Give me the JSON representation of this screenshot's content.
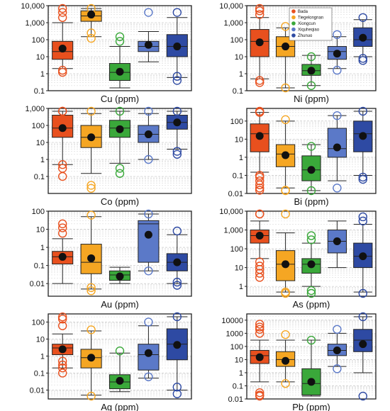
{
  "colors": {
    "Bada": "#e8501e",
    "Tiegelongnan": "#f5a623",
    "Xiongcun": "#3aa83a",
    "Xiquheqiao": "#5b79c8",
    "Zhunuo": "#2e4aa3"
  },
  "legend": [
    "Bada",
    "Tiegelongnan",
    "Xiongcun",
    "Xiquheqiao",
    "Zhunuo"
  ],
  "chart_data": [
    {
      "type": "box",
      "xlabel": "Cu  (ppm)",
      "yscale": "log",
      "ylim": [
        0.1,
        10000
      ],
      "yticks": [
        "0.1",
        "1",
        "10",
        "100",
        "1,000",
        "10,000"
      ],
      "series": [
        {
          "name": "Bada",
          "whisker_low": 2,
          "q1": 7,
          "median": 20,
          "q3": 80,
          "whisker_high": 1000,
          "mean": 30,
          "outliers": [
            1.2,
            1.6,
            2000,
            4000,
            13000
          ]
        },
        {
          "name": "Tiegelongnan",
          "whisker_low": 150,
          "q1": 1200,
          "median": 2500,
          "q3": 5000,
          "whisker_high": 60000,
          "mean": 3000,
          "outliers": [
            120,
            250,
            60000
          ]
        },
        {
          "name": "Xiongcun",
          "whisker_low": 0.12,
          "q1": 0.4,
          "median": 1.2,
          "q3": 4,
          "whisker_high": 40,
          "mean": 1.3,
          "outliers": [
            80,
            150
          ]
        },
        {
          "name": "Xiquheqiao",
          "whisker_low": 5,
          "q1": 20,
          "median": 40,
          "q3": 80,
          "whisker_high": 300,
          "mean": 50,
          "outliers": [
            4000
          ]
        },
        {
          "name": "Zhunuo",
          "whisker_low": 0.6,
          "q1": 10,
          "median": 40,
          "q3": 200,
          "whisker_high": 2000,
          "mean": 40,
          "outliers": [
            0.4,
            0.7,
            4000
          ]
        }
      ]
    },
    {
      "type": "box",
      "xlabel": "Ni  (ppm)",
      "yscale": "log",
      "ylim": [
        0.1,
        10000
      ],
      "yticks": [
        "0.1",
        "1",
        "10",
        "100",
        "1,000",
        "10,000"
      ],
      "series": [
        {
          "name": "Bada",
          "whisker_low": 0.5,
          "q1": 10,
          "median": 80,
          "q3": 400,
          "whisker_high": 2000,
          "mean": 70,
          "outliers": [
            0.3,
            0.4,
            3000,
            5000,
            8000
          ]
        },
        {
          "name": "Tiegelongnan",
          "whisker_low": 0.1,
          "q1": 10,
          "median": 40,
          "q3": 150,
          "whisker_high": 500,
          "mean": 40,
          "outliers": [
            0.12,
            600
          ]
        },
        {
          "name": "Xiongcun",
          "whisker_low": 0.2,
          "q1": 0.8,
          "median": 1.5,
          "q3": 3.5,
          "whisker_high": 12,
          "mean": 1.5,
          "outliers": [
            0.2,
            10
          ]
        },
        {
          "name": "Xiquheqiao",
          "whisker_low": 2,
          "q1": 7,
          "median": 20,
          "q3": 40,
          "whisker_high": 150,
          "mean": 15,
          "outliers": [
            1.6,
            200
          ]
        },
        {
          "name": "Zhunuo",
          "whisker_low": 10,
          "q1": 40,
          "median": 100,
          "q3": 500,
          "whisker_high": 1500,
          "mean": 130,
          "outliers": [
            6,
            8,
            2000
          ]
        }
      ]
    },
    {
      "type": "box",
      "xlabel": "Co  (ppm)",
      "yscale": "log",
      "ylim": [
        0.01,
        1000
      ],
      "yticks": [
        "0.1",
        "1",
        "10",
        "100",
        "1,000"
      ],
      "series": [
        {
          "name": "Bada",
          "whisker_low": 0.5,
          "q1": 20,
          "median": 70,
          "q3": 400,
          "whisker_high": 2000,
          "mean": 70,
          "outliers": [
            0.1,
            0.3,
            0.5,
            2000,
            3000
          ]
        },
        {
          "name": "Tiegelongnan",
          "whisker_low": 0.15,
          "q1": 5,
          "median": 20,
          "q3": 100,
          "whisker_high": 500,
          "mean": 20,
          "outliers": [
            0.02,
            0.03,
            2000
          ]
        },
        {
          "name": "Xiongcun",
          "whisker_low": 0.6,
          "q1": 20,
          "median": 70,
          "q3": 200,
          "whisker_high": 1000,
          "mean": 60,
          "outliers": [
            0.15,
            0.3,
            2000
          ]
        },
        {
          "name": "Xiquheqiao",
          "whisker_low": 1,
          "q1": 10,
          "median": 30,
          "q3": 100,
          "whisker_high": 500,
          "mean": 30,
          "outliers": [
            1,
            2000
          ]
        },
        {
          "name": "Zhunuo",
          "whisker_low": 4,
          "q1": 60,
          "median": 150,
          "q3": 400,
          "whisker_high": 2000,
          "mean": 150,
          "outliers": [
            2,
            3,
            2000
          ]
        }
      ]
    },
    {
      "type": "box",
      "xlabel": "Bi  (ppm)",
      "yscale": "log",
      "ylim": [
        0.01,
        500
      ],
      "yticks": [
        "0.01",
        "0.1",
        "1",
        "10",
        "100"
      ],
      "series": [
        {
          "name": "Bada",
          "whisker_low": 0.15,
          "q1": 2,
          "median": 20,
          "q3": 70,
          "whisker_high": 300,
          "mean": 15,
          "outliers": [
            0.015,
            0.02,
            0.03,
            0.05,
            0.08,
            0.1,
            300,
            500
          ]
        },
        {
          "name": "Tiegelongnan",
          "whisker_low": 0.02,
          "q1": 0.3,
          "median": 1.5,
          "q3": 5,
          "whisker_high": 100,
          "mean": 1.3,
          "outliers": [
            0.01,
            0.015,
            120
          ]
        },
        {
          "name": "Xiongcun",
          "whisker_low": 0.01,
          "q1": 0.05,
          "median": 0.2,
          "q3": 1.2,
          "whisker_high": 5,
          "mean": 0.2,
          "outliers": [
            0.01,
            4
          ]
        },
        {
          "name": "Xiquheqiao",
          "whisker_low": 0.05,
          "q1": 1,
          "median": 3,
          "q3": 40,
          "whisker_high": 200,
          "mean": 3.5,
          "outliers": [
            0.02,
            200
          ]
        },
        {
          "name": "Zhunuo",
          "whisker_low": 0.1,
          "q1": 2,
          "median": 20,
          "q3": 100,
          "whisker_high": 500,
          "mean": 15,
          "outliers": [
            0.06,
            0.08,
            500
          ]
        }
      ]
    },
    {
      "type": "box",
      "xlabel": "Au  (ppm)",
      "yscale": "log",
      "ylim": [
        0.002,
        100
      ],
      "yticks": [
        "0.01",
        "0.1",
        "1",
        "10",
        "100"
      ],
      "series": [
        {
          "name": "Bada",
          "whisker_low": 0.01,
          "q1": 0.12,
          "median": 0.3,
          "q3": 0.6,
          "whisker_high": 3,
          "mean": 0.3,
          "outliers": [
            6,
            12,
            20
          ]
        },
        {
          "name": "Tiegelongnan",
          "whisker_low": 0.005,
          "q1": 0.035,
          "median": 0.15,
          "q3": 1.5,
          "whisker_high": 50,
          "mean": 0.25,
          "outliers": [
            0.004,
            0.006,
            60
          ]
        },
        {
          "name": "Xiongcun",
          "whisker_low": 0.01,
          "q1": 0.015,
          "median": 0.03,
          "q3": 0.05,
          "whisker_high": 0.08,
          "mean": 0.025,
          "outliers": []
        },
        {
          "name": "Xiquheqiao",
          "whisker_low": 0.05,
          "q1": 0.15,
          "median": 20,
          "q3": 30,
          "whisker_high": 100,
          "mean": 5,
          "outliers": [
            0.05,
            100
          ]
        },
        {
          "name": "Zhunuo",
          "whisker_low": 0.01,
          "q1": 0.05,
          "median": 0.15,
          "q3": 0.45,
          "whisker_high": 5,
          "mean": 0.15,
          "outliers": [
            0.008,
            0.012,
            8
          ]
        }
      ]
    },
    {
      "type": "box",
      "xlabel": "As  (ppm)",
      "yscale": "log",
      "ylim": [
        0.3,
        10000
      ],
      "yticks": [
        "1",
        "10",
        "100",
        "1,000",
        "10,000"
      ],
      "series": [
        {
          "name": "Bada",
          "whisker_low": 30,
          "q1": 200,
          "median": 500,
          "q3": 1000,
          "whisker_high": 3000,
          "mean": 500,
          "outliers": [
            3,
            5,
            8,
            12,
            20,
            8000,
            15000
          ]
        },
        {
          "name": "Tiegelongnan",
          "whisker_low": 0.5,
          "q1": 2,
          "median": 15,
          "q3": 80,
          "whisker_high": 700,
          "mean": 15,
          "outliers": [
            0.35,
            0.5,
            8000
          ]
        },
        {
          "name": "Xiongcun",
          "whisker_low": 1,
          "q1": 5,
          "median": 15,
          "q3": 30,
          "whisker_high": 200,
          "mean": 15,
          "outliers": [
            0.4,
            0.6,
            300,
            500
          ]
        },
        {
          "name": "Xiquheqiao",
          "whisker_low": 10,
          "q1": 60,
          "median": 250,
          "q3": 1000,
          "whisker_high": 3000,
          "mean": 250,
          "outliers": []
        },
        {
          "name": "Zhunuo",
          "whisker_low": 0.5,
          "q1": 10,
          "median": 40,
          "q3": 200,
          "whisker_high": 2000,
          "mean": 40,
          "outliers": [
            0.3,
            3000,
            5000
          ]
        }
      ]
    },
    {
      "type": "box",
      "xlabel": "Ag  (ppm)",
      "yscale": "log",
      "ylim": [
        0.003,
        300
      ],
      "yticks": [
        "0.01",
        "0.1",
        "1",
        "10",
        "100"
      ],
      "series": [
        {
          "name": "Bada",
          "whisker_low": 0.2,
          "q1": 1.2,
          "median": 3,
          "q3": 5,
          "whisker_high": 20,
          "mean": 2.5,
          "outliers": [
            0.1,
            0.2,
            0.3,
            0.5,
            60,
            150,
            200
          ]
        },
        {
          "name": "Tiegelongnan",
          "whisker_low": 0.005,
          "q1": 0.2,
          "median": 0.8,
          "q3": 2.5,
          "whisker_high": 30,
          "mean": 0.8,
          "outliers": [
            0.004,
            35
          ]
        },
        {
          "name": "Xiongcun",
          "whisker_low": 0.008,
          "q1": 0.012,
          "median": 0.03,
          "q3": 0.08,
          "whisker_high": 1.5,
          "mean": 0.035,
          "outliers": [
            2
          ]
        },
        {
          "name": "Xiquheqiao",
          "whisker_low": 0.05,
          "q1": 0.15,
          "median": 1.2,
          "q3": 5,
          "whisker_high": 60,
          "mean": 1.5,
          "outliers": [
            0.06,
            100
          ]
        },
        {
          "name": "Zhunuo",
          "whisker_low": 0.01,
          "q1": 0.6,
          "median": 5,
          "q3": 40,
          "whisker_high": 300,
          "mean": 4.5,
          "outliers": [
            0.006,
            0.015,
            300
          ]
        }
      ]
    },
    {
      "type": "box",
      "xlabel": "Pb  (ppm)",
      "yscale": "log",
      "ylim": [
        0.01,
        30000
      ],
      "yticks": [
        "0.01",
        "0.1",
        "1",
        "10",
        "100",
        "1000",
        "10000"
      ],
      "series": [
        {
          "name": "Bada",
          "whisker_low": 0.2,
          "q1": 5,
          "median": 20,
          "q3": 50,
          "whisker_high": 300,
          "mean": 15,
          "outliers": [
            0.01,
            0.02,
            0.03,
            1000,
            2000,
            3000,
            5000
          ]
        },
        {
          "name": "Tiegelongnan",
          "whisker_low": 0.2,
          "q1": 3,
          "median": 10,
          "q3": 40,
          "whisker_high": 300,
          "mean": 8,
          "outliers": [
            0.15,
            800
          ]
        },
        {
          "name": "Xiongcun",
          "whisker_low": 0.01,
          "q1": 0.02,
          "median": 0.15,
          "q3": 2,
          "whisker_high": 300,
          "mean": 0.2,
          "outliers": [
            300
          ]
        },
        {
          "name": "Xiquheqiao",
          "whisker_low": 3,
          "q1": 20,
          "median": 50,
          "q3": 150,
          "whisker_high": 1000,
          "mean": 50,
          "outliers": [
            2,
            2000
          ]
        },
        {
          "name": "Zhunuo",
          "whisker_low": 1,
          "q1": 40,
          "median": 300,
          "q3": 2000,
          "whisker_high": 20000,
          "mean": 150,
          "outliers": [
            0.01,
            20000
          ]
        }
      ]
    }
  ]
}
